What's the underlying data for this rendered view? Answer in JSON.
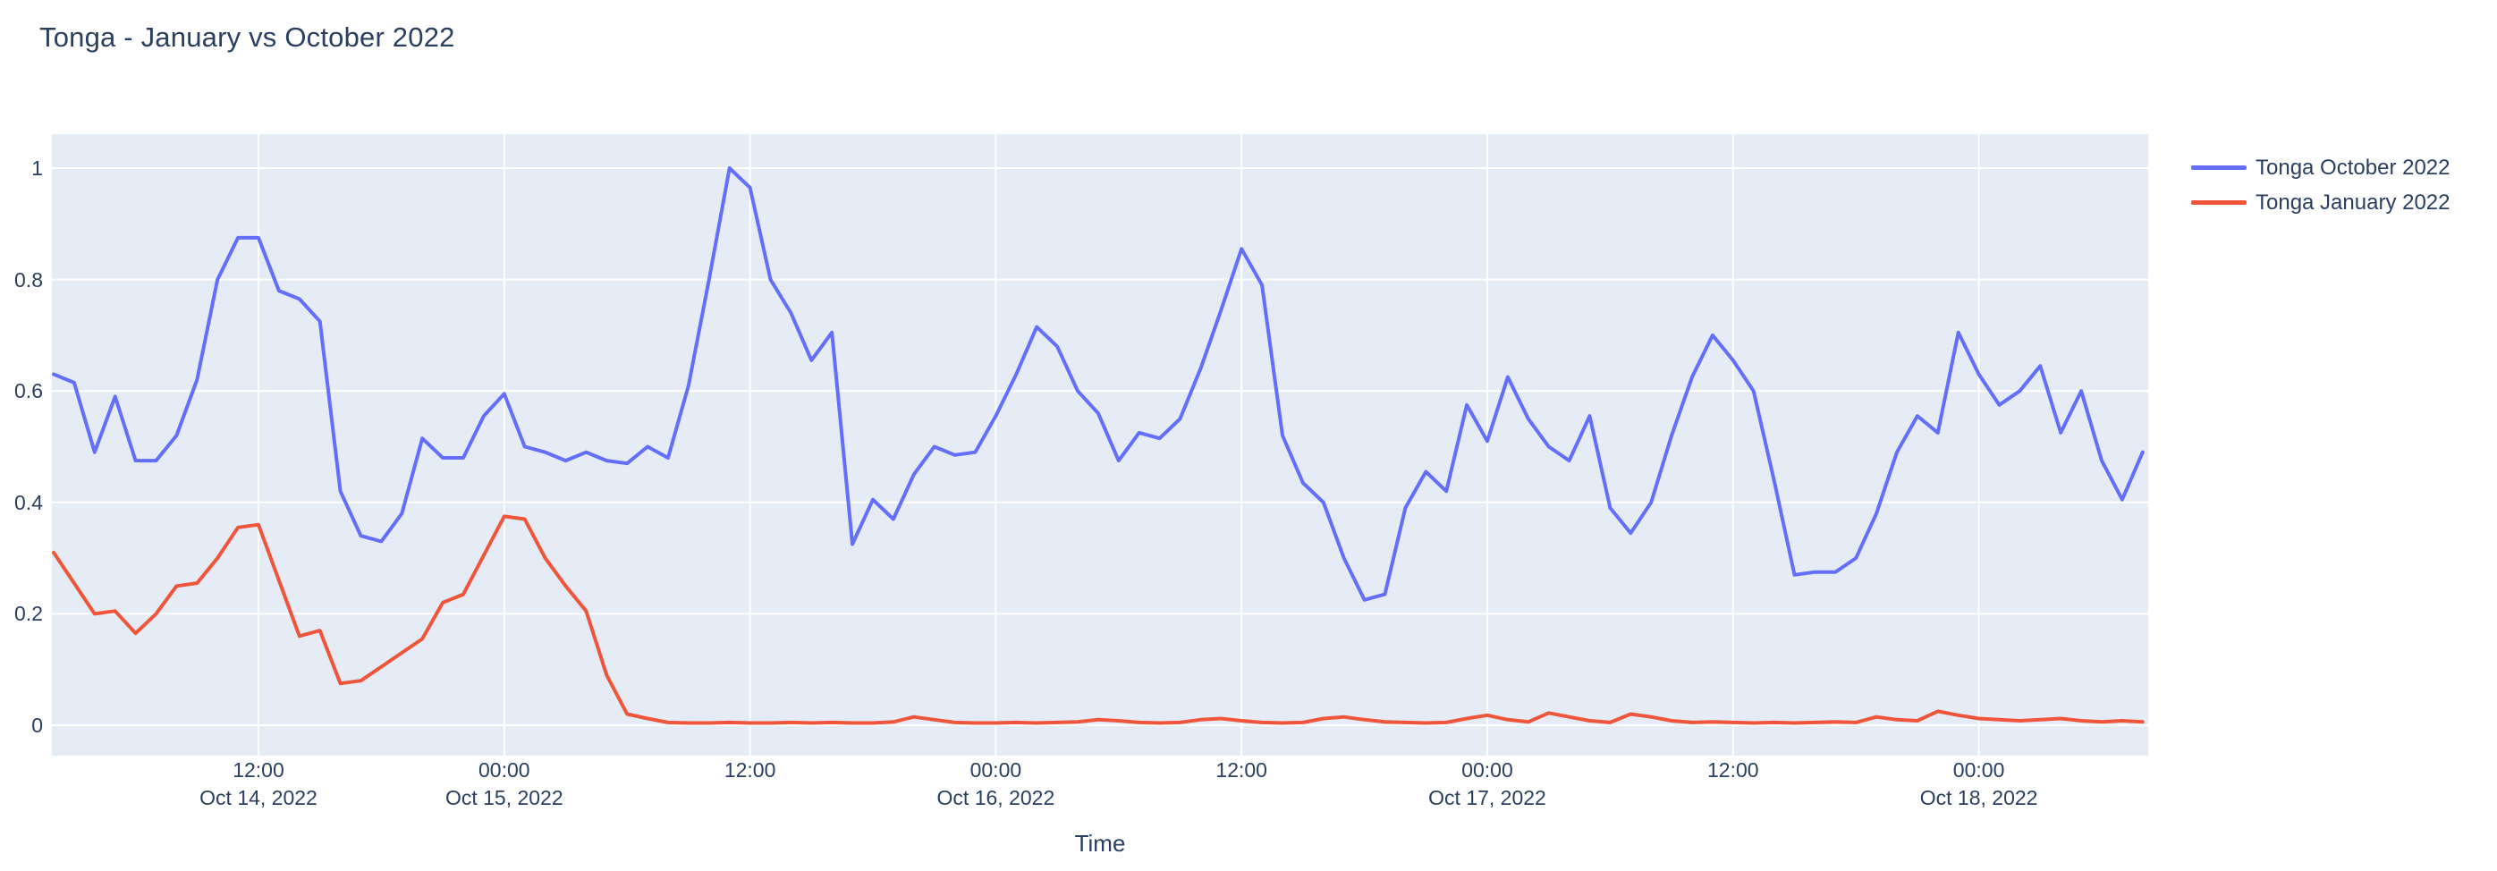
{
  "title": "Tonga - January vs October 2022",
  "colors": {
    "plot_background": "#E5ECF6",
    "gridline": "#FFFFFF",
    "text": "#2A3F5F",
    "october_line": "#636EFA",
    "january_line": "#EF553B",
    "page_background": "#FFFFFF"
  },
  "legend": [
    {
      "label": "Tonga October 2022",
      "color": "#636EFA"
    },
    {
      "label": "Tonga January 2022",
      "color": "#EF553B"
    }
  ],
  "yaxis": {
    "tick_labels": [
      "0",
      "0.2",
      "0.4",
      "0.6",
      "0.8",
      "1"
    ],
    "tick_values": [
      0,
      0.2,
      0.4,
      0.6,
      0.8,
      1
    ]
  },
  "xaxis": {
    "title": "Time",
    "ticks": [
      {
        "time": "12:00",
        "date": "Oct 14, 2022",
        "hour": 12
      },
      {
        "time": "00:00",
        "date": "Oct 15, 2022",
        "hour": 24
      },
      {
        "time": "12:00",
        "date": "",
        "hour": 36
      },
      {
        "time": "00:00",
        "date": "Oct 16, 2022",
        "hour": 48
      },
      {
        "time": "12:00",
        "date": "",
        "hour": 60
      },
      {
        "time": "00:00",
        "date": "Oct 17, 2022",
        "hour": 72
      },
      {
        "time": "12:00",
        "date": "",
        "hour": 84
      },
      {
        "time": "00:00",
        "date": "Oct 18, 2022",
        "hour": 96
      }
    ]
  },
  "chart_data": {
    "type": "line",
    "title": "Tonga - January vs October 2022",
    "xlabel": "Time",
    "ylabel": "",
    "ylim": [
      0,
      1
    ],
    "grid": true,
    "legend_position": "top-right",
    "x_start": "2022-10-14 02:00",
    "x_interval_hours": 1,
    "n_points": 103,
    "x_tick_hours_since_oct14": [
      12,
      24,
      36,
      48,
      60,
      72,
      84,
      96
    ],
    "series": [
      {
        "name": "Tonga October 2022",
        "color": "#636EFA",
        "start_hour": 2,
        "values": [
          0.63,
          0.615,
          0.49,
          0.59,
          0.475,
          0.475,
          0.52,
          0.62,
          0.8,
          0.875,
          0.875,
          0.78,
          0.765,
          0.725,
          0.42,
          0.34,
          0.33,
          0.38,
          0.515,
          0.48,
          0.48,
          0.555,
          0.595,
          0.5,
          0.49,
          0.475,
          0.49,
          0.475,
          0.47,
          0.5,
          0.48,
          0.61,
          0.8,
          1.0,
          0.965,
          0.8,
          0.74,
          0.655,
          0.705,
          0.325,
          0.405,
          0.37,
          0.45,
          0.5,
          0.485,
          0.49,
          0.555,
          0.63,
          0.715,
          0.68,
          0.6,
          0.56,
          0.475,
          0.525,
          0.515,
          0.55,
          0.64,
          0.745,
          0.855,
          0.79,
          0.52,
          0.435,
          0.4,
          0.3,
          0.225,
          0.235,
          0.39,
          0.455,
          0.42,
          0.575,
          0.51,
          0.625,
          0.55,
          0.5,
          0.475,
          0.555,
          0.39,
          0.345,
          0.4,
          0.52,
          0.625,
          0.7,
          0.655,
          0.6,
          0.44,
          0.27,
          0.275,
          0.275,
          0.3,
          0.38,
          0.49,
          0.555,
          0.525,
          0.705,
          0.63,
          0.575,
          0.6,
          0.645,
          0.525,
          0.6,
          0.475,
          0.405,
          0.49
        ]
      },
      {
        "name": "Tonga January 2022",
        "color": "#EF553B",
        "start_hour": 2,
        "values": [
          0.31,
          0.255,
          0.2,
          0.205,
          0.165,
          0.2,
          0.25,
          0.255,
          0.3,
          0.355,
          0.36,
          0.26,
          0.16,
          0.17,
          0.075,
          0.08,
          0.105,
          0.13,
          0.155,
          0.22,
          0.235,
          0.305,
          0.375,
          0.37,
          0.3,
          0.25,
          0.205,
          0.09,
          0.02,
          0.012,
          0.005,
          0.004,
          0.004,
          0.005,
          0.004,
          0.004,
          0.005,
          0.004,
          0.005,
          0.004,
          0.004,
          0.006,
          0.015,
          0.01,
          0.005,
          0.004,
          0.004,
          0.005,
          0.004,
          0.005,
          0.006,
          0.01,
          0.008,
          0.005,
          0.004,
          0.005,
          0.01,
          0.012,
          0.008,
          0.005,
          0.004,
          0.005,
          0.012,
          0.015,
          0.01,
          0.006,
          0.005,
          0.004,
          0.005,
          0.012,
          0.018,
          0.01,
          0.006,
          0.022,
          0.015,
          0.008,
          0.005,
          0.02,
          0.015,
          0.008,
          0.005,
          0.006,
          0.005,
          0.004,
          0.005,
          0.004,
          0.005,
          0.006,
          0.005,
          0.015,
          0.01,
          0.008,
          0.025,
          0.018,
          0.012,
          0.01,
          0.008,
          0.01,
          0.012,
          0.008,
          0.006,
          0.008,
          0.006
        ]
      }
    ]
  }
}
